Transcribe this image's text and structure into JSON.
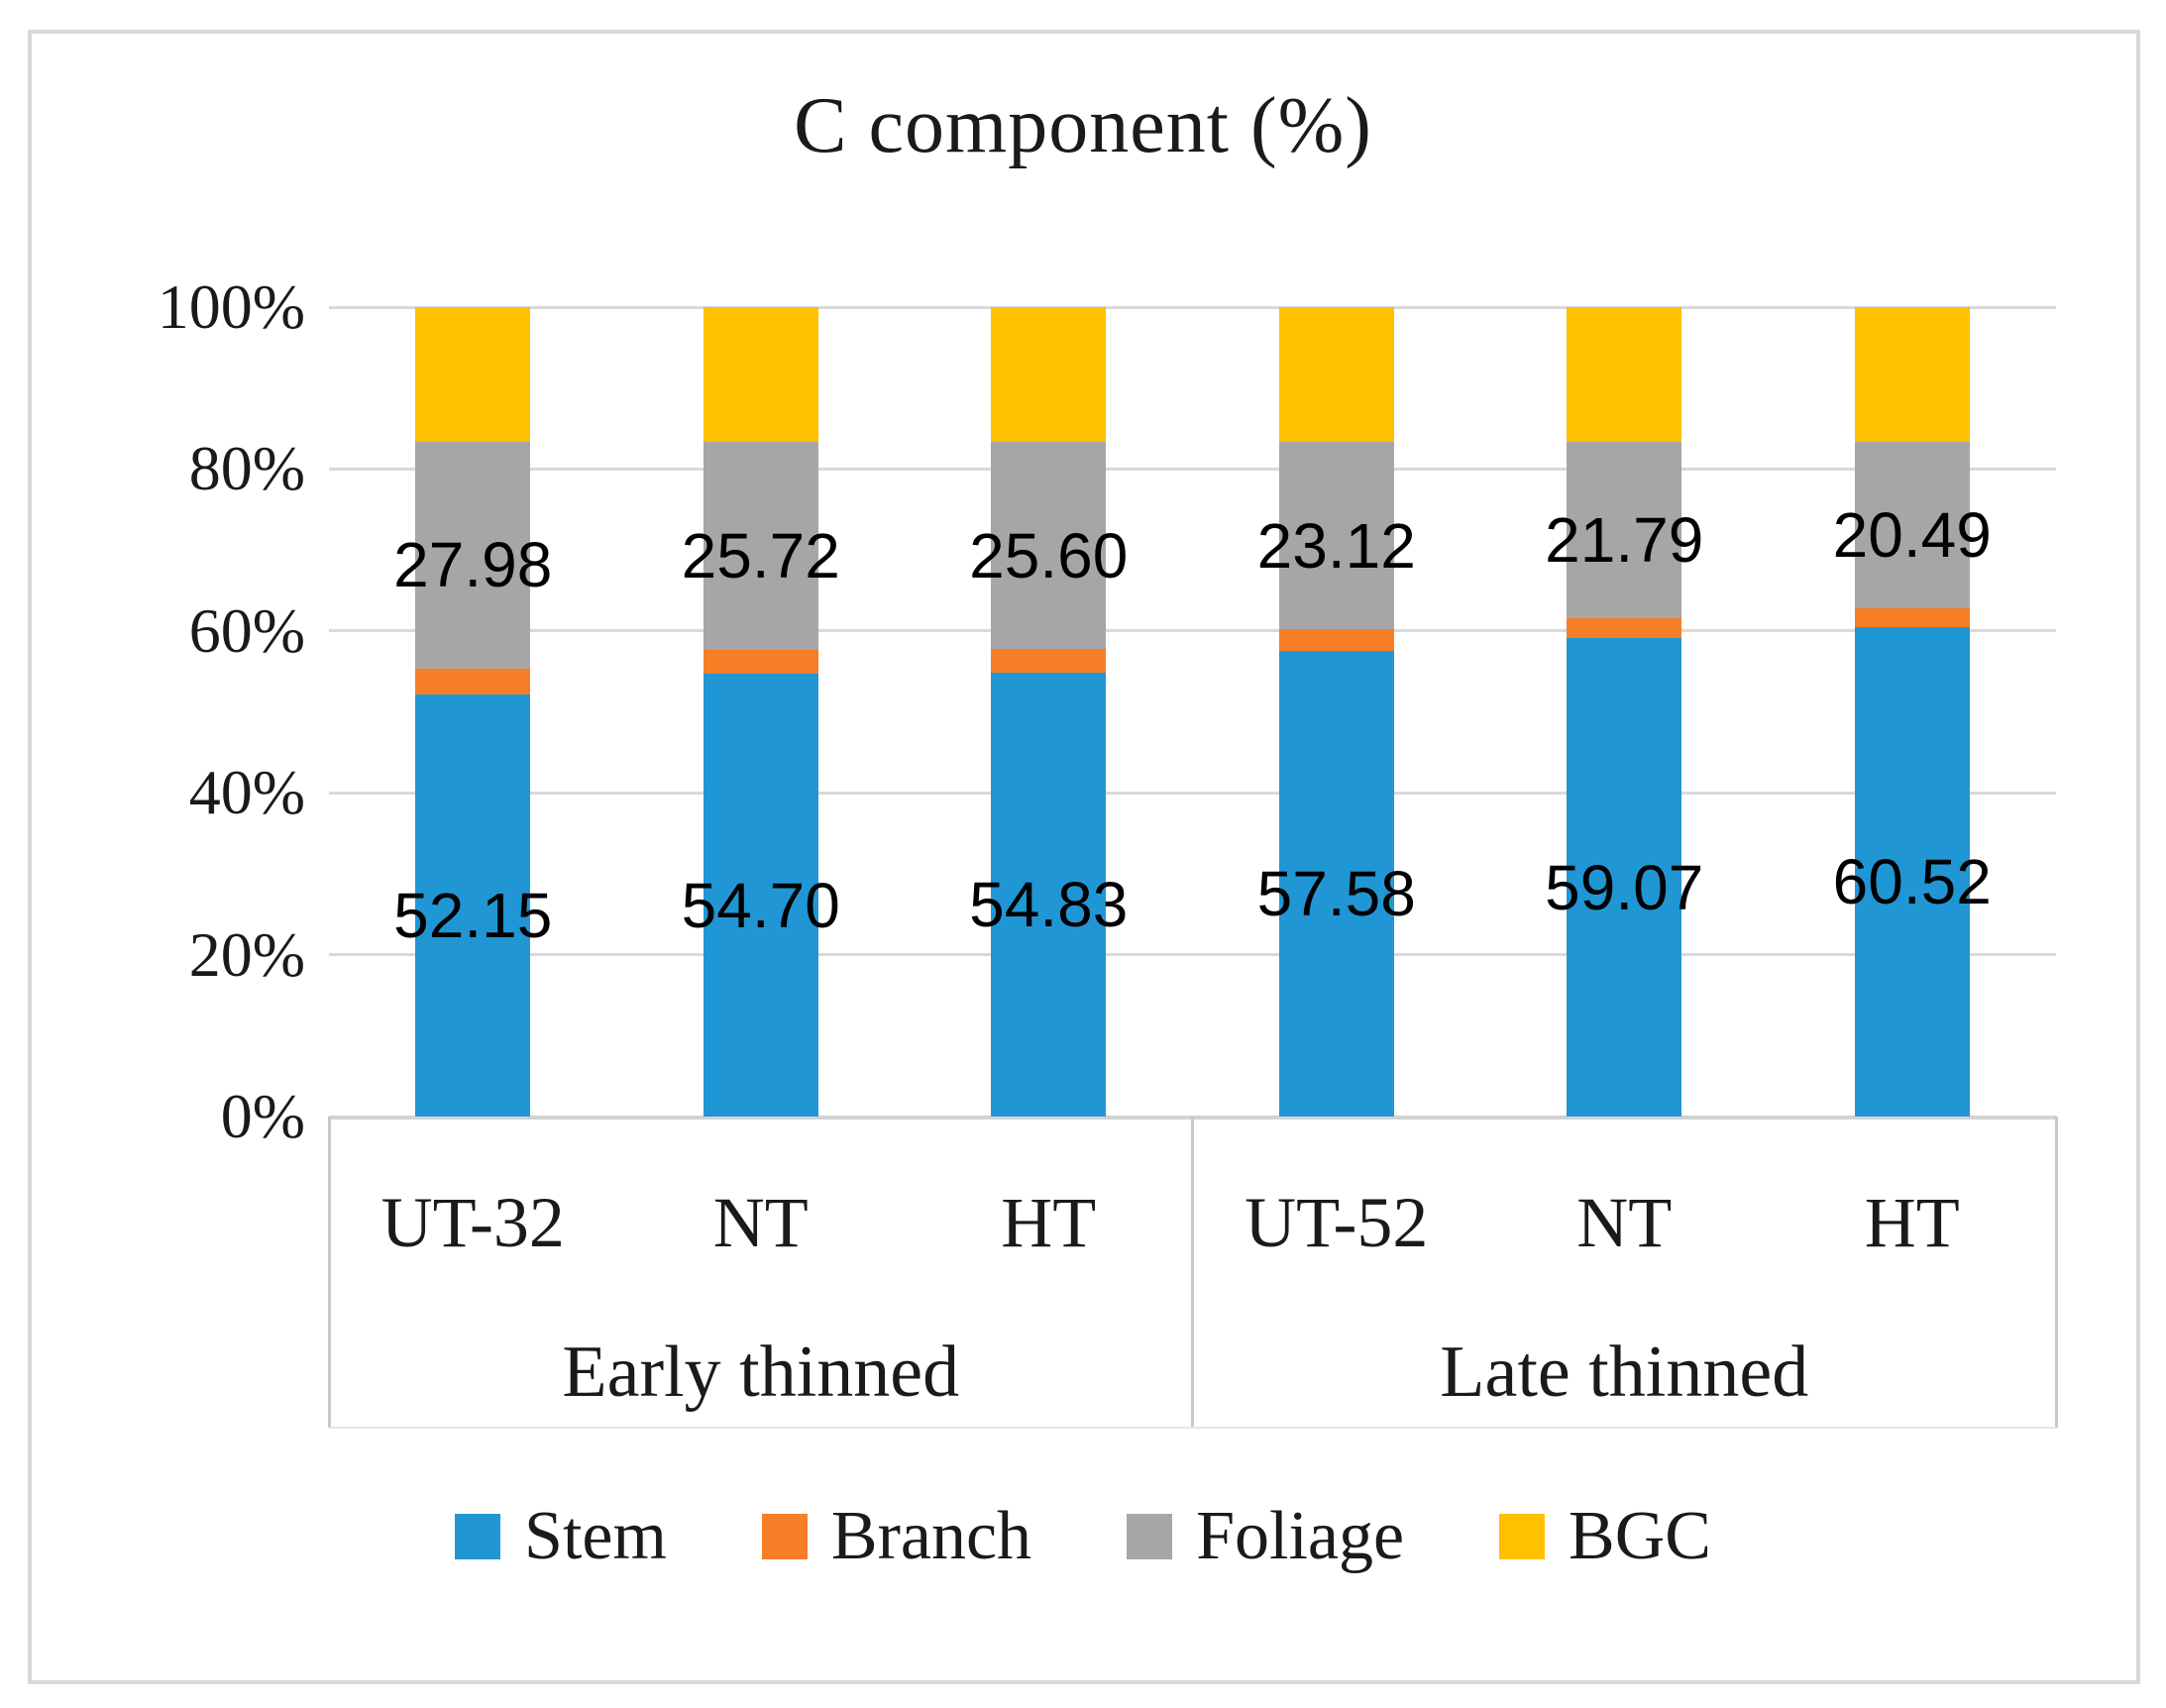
{
  "chart_data": {
    "type": "bar",
    "stacking": "percent",
    "title": "C component (%)",
    "categories": [
      "UT-32",
      "NT",
      "HT",
      "UT-52",
      "NT",
      "HT"
    ],
    "groups": [
      {
        "label": "Early thinned",
        "span": 3
      },
      {
        "label": "Late thinned",
        "span": 3
      }
    ],
    "series": [
      {
        "name": "Stem",
        "color": "#2196d5",
        "values": [
          52.15,
          54.7,
          54.83,
          57.58,
          59.07,
          60.52
        ],
        "labels": [
          "52.15",
          "54.70",
          "54.83",
          "57.58",
          "59.07",
          "60.52"
        ],
        "show_labels": true
      },
      {
        "name": "Branch",
        "color": "#f57e27",
        "values": [
          3.2,
          2.91,
          2.9,
          2.63,
          2.47,
          2.32
        ],
        "labels": null,
        "show_labels": false
      },
      {
        "name": "Foliage",
        "color": "#a6a6a6",
        "values": [
          27.98,
          25.72,
          25.6,
          23.12,
          21.79,
          20.49
        ],
        "labels": [
          "27.98",
          "25.72",
          "25.60",
          "23.12",
          "21.79",
          "20.49"
        ],
        "show_labels": true
      },
      {
        "name": "BGC",
        "color": "#ffc000",
        "values": [
          16.67,
          16.67,
          16.67,
          16.67,
          16.67,
          16.67
        ],
        "labels": null,
        "show_labels": false
      }
    ],
    "y_axis": {
      "min": 0,
      "max": 100,
      "ticks": [
        "0%",
        "20%",
        "40%",
        "60%",
        "80%",
        "100%"
      ]
    },
    "legend": [
      "Stem",
      "Branch",
      "Foliage",
      "BGC"
    ],
    "legend_position": "bottom",
    "gridlines": true
  },
  "style_colors": {
    "gridline": "#d9d9d9",
    "figure_border": "#d9d9d9",
    "category_divider": "#c9c9c9",
    "text": "#1a1a1a"
  }
}
